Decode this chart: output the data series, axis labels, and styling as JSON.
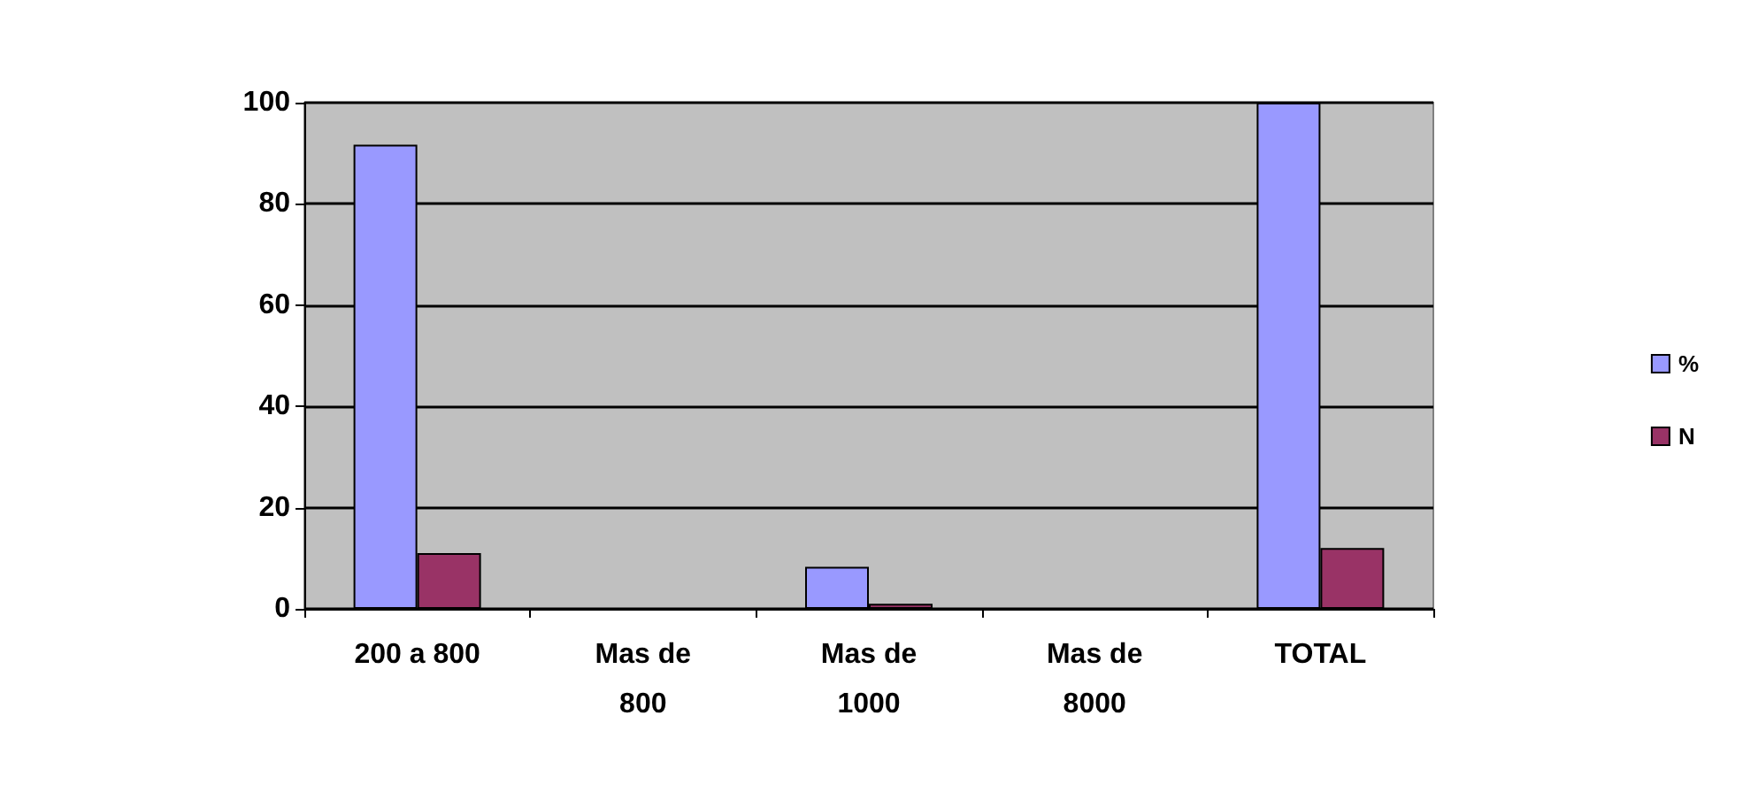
{
  "chart_data": {
    "type": "bar",
    "categories": [
      "200 a 800",
      "Mas de\n800",
      "Mas de\n1000",
      "Mas de\n8000",
      "TOTAL"
    ],
    "series": [
      {
        "name": "%",
        "color": "#9999ff",
        "values": [
          91.7,
          0,
          8.3,
          0,
          100
        ]
      },
      {
        "name": "N",
        "color": "#993366",
        "values": [
          11,
          0,
          1,
          0,
          12
        ]
      }
    ],
    "ylim": [
      0,
      100
    ],
    "yticks": [
      0,
      20,
      40,
      60,
      80,
      100
    ],
    "grid": "y",
    "legend": "right"
  }
}
